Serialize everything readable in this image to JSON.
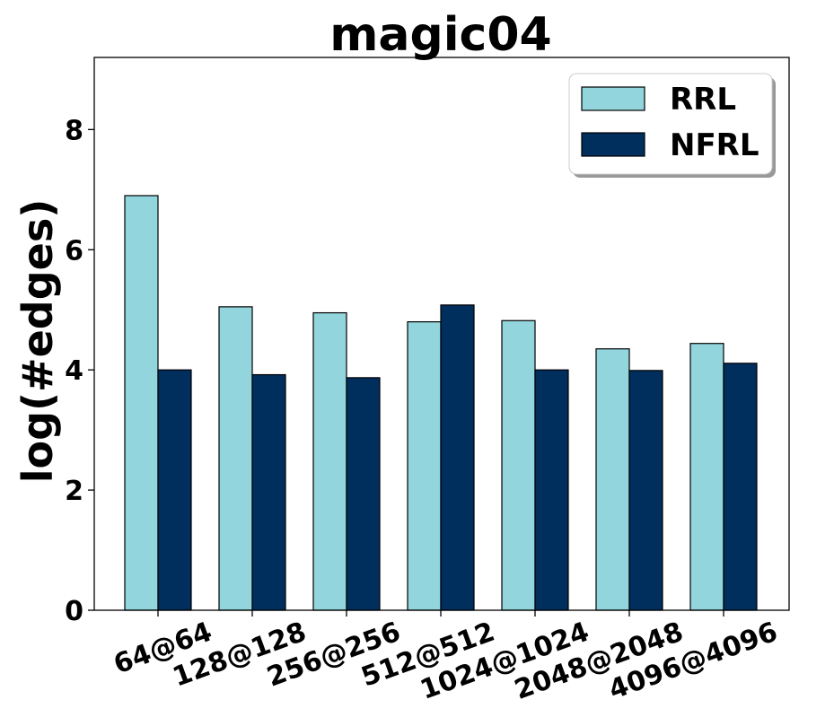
{
  "chart_data": {
    "type": "bar",
    "title": "magic04",
    "xlabel": "",
    "ylabel": "log(#edges)",
    "categories": [
      "64@64",
      "128@128",
      "256@256",
      "512@512",
      "1024@1024",
      "2048@2048",
      "4096@4096"
    ],
    "series": [
      {
        "name": "RRL",
        "color": "#93d5dc",
        "values": [
          6.9,
          5.05,
          4.95,
          4.8,
          4.82,
          4.35,
          4.44
        ]
      },
      {
        "name": "NFRL",
        "color": "#002e5d",
        "values": [
          4.0,
          3.92,
          3.87,
          5.08,
          4.0,
          3.99,
          4.11
        ]
      }
    ],
    "ylim": [
      0,
      9.2
    ],
    "yticks": [
      0,
      2,
      4,
      6,
      8
    ],
    "grid": false,
    "legend_position": "top-right"
  }
}
